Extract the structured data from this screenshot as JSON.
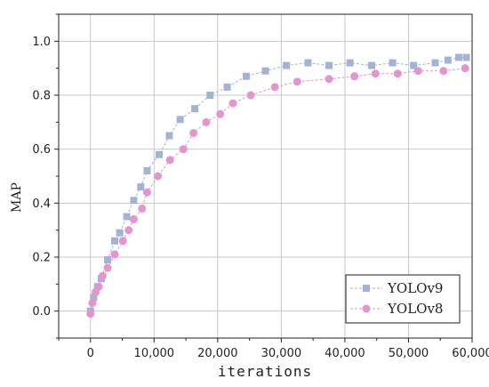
{
  "chart_data": {
    "type": "line",
    "title": "",
    "xlabel": "iterations",
    "ylabel": "MAP",
    "xlim": [
      -5000,
      60000
    ],
    "ylim": [
      -0.1,
      1.1
    ],
    "x_ticks": [
      0,
      10000,
      20000,
      30000,
      40000,
      50000,
      60000
    ],
    "x_tick_labels": [
      "0",
      "10,000",
      "20,000",
      "30,000",
      "40,000",
      "50,000",
      "60,000"
    ],
    "y_ticks": [
      0.0,
      0.2,
      0.4,
      0.6,
      0.8,
      1.0
    ],
    "y_tick_labels": [
      "0.0",
      "0.2",
      "0.4",
      "0.6",
      "0.8",
      "1.0"
    ],
    "grid": true,
    "legend_position": "bottom-right",
    "series": [
      {
        "name": "YOLOv9",
        "marker": "square",
        "color": "#a3b3d6",
        "x": [
          0,
          500,
          1100,
          1700,
          2700,
          3800,
          4600,
          5700,
          6800,
          7900,
          8900,
          10800,
          12400,
          14100,
          16400,
          18800,
          21500,
          24500,
          27500,
          30800,
          34200,
          37500,
          40800,
          44200,
          47500,
          50800,
          54200,
          56200,
          57900,
          59100
        ],
        "y": [
          0.0,
          0.05,
          0.09,
          0.12,
          0.19,
          0.26,
          0.29,
          0.35,
          0.41,
          0.46,
          0.52,
          0.58,
          0.65,
          0.71,
          0.75,
          0.8,
          0.83,
          0.87,
          0.89,
          0.91,
          0.92,
          0.91,
          0.92,
          0.91,
          0.92,
          0.91,
          0.92,
          0.93,
          0.94,
          0.94
        ]
      },
      {
        "name": "YOLOv8",
        "marker": "circle",
        "color": "#e495cf",
        "x": [
          0,
          300,
          800,
          1300,
          1900,
          2700,
          3800,
          5100,
          6000,
          6800,
          8100,
          8900,
          10600,
          12500,
          14600,
          16200,
          18200,
          20400,
          22400,
          25200,
          29000,
          32500,
          37500,
          41500,
          44800,
          48300,
          51500,
          55500,
          58900
        ],
        "y": [
          -0.01,
          0.03,
          0.07,
          0.09,
          0.13,
          0.16,
          0.21,
          0.26,
          0.3,
          0.34,
          0.38,
          0.44,
          0.5,
          0.56,
          0.6,
          0.66,
          0.7,
          0.73,
          0.77,
          0.8,
          0.83,
          0.85,
          0.86,
          0.87,
          0.88,
          0.88,
          0.89,
          0.89,
          0.9
        ]
      }
    ]
  }
}
